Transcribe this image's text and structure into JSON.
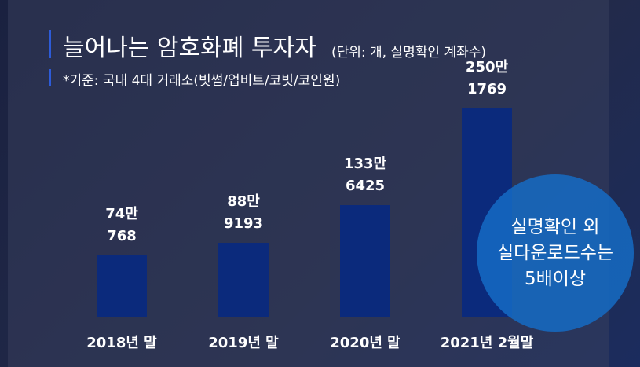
{
  "chart_data": {
    "type": "bar",
    "title": "늘어나는 암호화폐 투자자",
    "subtitle": "(단위: 개, 실명확인 계좌수)",
    "note": "*기준: 국내 4대 거래소(빗썸/업비트/코빗/코인원)",
    "annotation": "실명확인 외\n실다운로드수는\n5배이상",
    "categories": [
      "2018년 말",
      "2019년 말",
      "2020년 말",
      "2021년 2월말"
    ],
    "values": [
      740768,
      889193,
      1336425,
      2501769
    ],
    "value_labels": [
      "74만\n768",
      "88만\n9193",
      "133만\n6425",
      "250만\n1769"
    ],
    "color": "#0b2a7c"
  }
}
